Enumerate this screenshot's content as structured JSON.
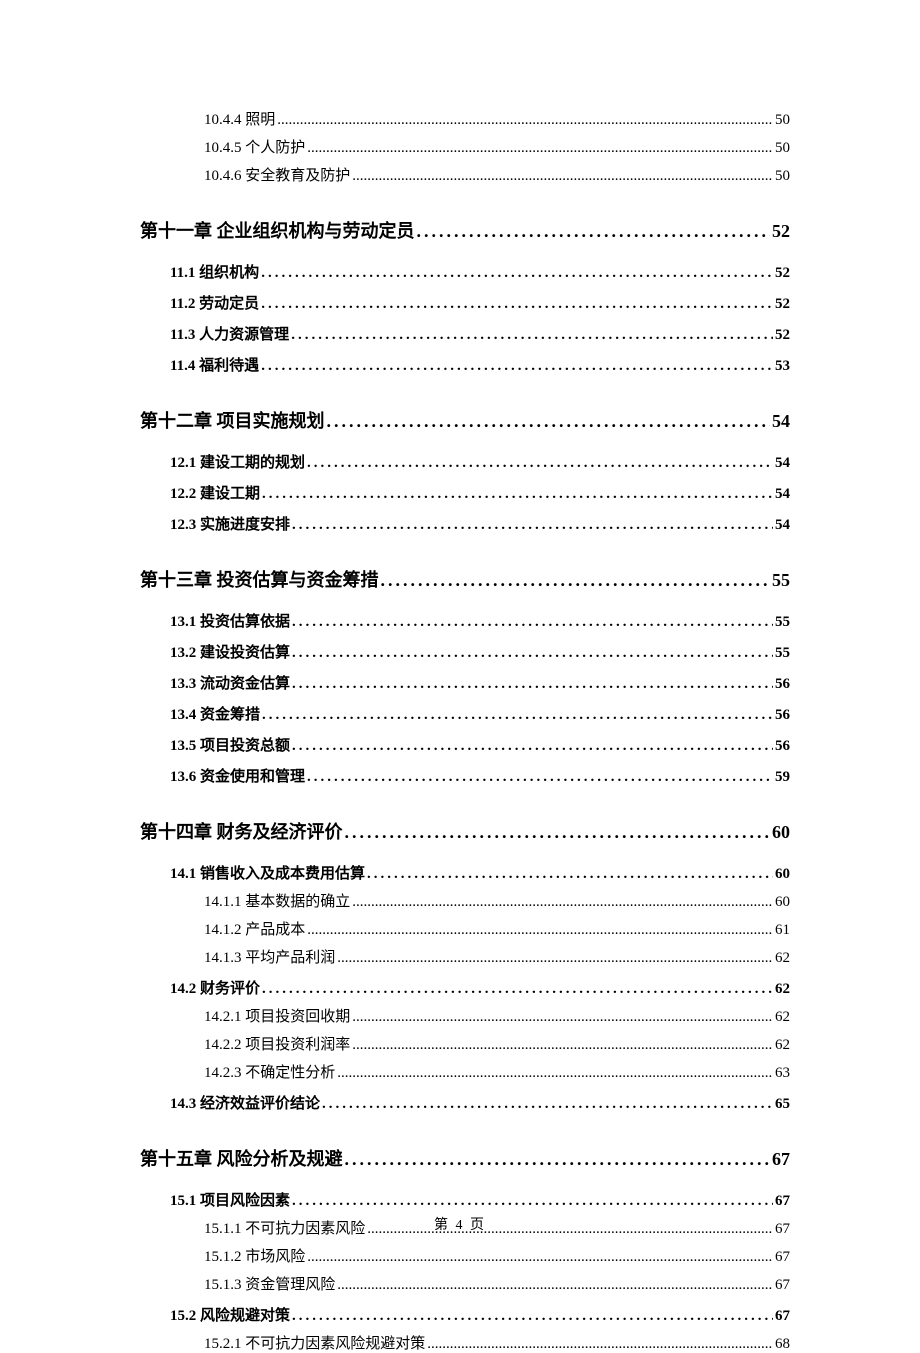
{
  "footer": "第 4 页",
  "leader_dot_l12": ".",
  "leader_dot_l3": ".",
  "entries": [
    {
      "level": 3,
      "label": "10.4.4 照明",
      "page": "50",
      "first": true
    },
    {
      "level": 3,
      "label": "10.4.5 个人防护",
      "page": "50"
    },
    {
      "level": 3,
      "label": "10.4.6 安全教育及防护",
      "page": "50",
      "groupEnd": true
    },
    {
      "level": 1,
      "label": "第十一章  企业组织机构与劳动定员",
      "page": "52"
    },
    {
      "level": 2,
      "label": "11.1 组织机构",
      "page": "52"
    },
    {
      "level": 2,
      "label": "11.2 劳动定员",
      "page": "52"
    },
    {
      "level": 2,
      "label": "11.3 人力资源管理",
      "page": "52"
    },
    {
      "level": 2,
      "label": "11.4 福利待遇",
      "page": "53"
    },
    {
      "level": 1,
      "label": "第十二章  项目实施规划",
      "page": "54"
    },
    {
      "level": 2,
      "label": "12.1 建设工期的规划",
      "page": "54"
    },
    {
      "level": 2,
      "label": "12.2  建设工期",
      "page": "54"
    },
    {
      "level": 2,
      "label": "12.3 实施进度安排",
      "page": "54"
    },
    {
      "level": 1,
      "label": "第十三章  投资估算与资金筹措",
      "page": "55"
    },
    {
      "level": 2,
      "label": "13.1 投资估算依据",
      "page": "55"
    },
    {
      "level": 2,
      "label": "13.2 建设投资估算",
      "page": "55"
    },
    {
      "level": 2,
      "label": "13.3 流动资金估算",
      "page": "56"
    },
    {
      "level": 2,
      "label": "13.4 资金筹措",
      "page": "56"
    },
    {
      "level": 2,
      "label": "13.5 项目投资总额",
      "page": "56"
    },
    {
      "level": 2,
      "label": "13.6 资金使用和管理",
      "page": "59"
    },
    {
      "level": 1,
      "label": "第十四章  财务及经济评价",
      "page": "60"
    },
    {
      "level": 2,
      "label": "14.1 销售收入及成本费用估算",
      "page": "60"
    },
    {
      "level": 3,
      "label": "14.1.1 基本数据的确立",
      "page": "60"
    },
    {
      "level": 3,
      "label": "14.1.2 产品成本",
      "page": "61"
    },
    {
      "level": 3,
      "label": "14.1.3 平均产品利润",
      "page": "62"
    },
    {
      "level": 2,
      "label": "14.2 财务评价",
      "page": "62"
    },
    {
      "level": 3,
      "label": "14.2.1 项目投资回收期",
      "page": "62"
    },
    {
      "level": 3,
      "label": "14.2.2 项目投资利润率",
      "page": "62"
    },
    {
      "level": 3,
      "label": "14.2.3 不确定性分析",
      "page": "63"
    },
    {
      "level": 2,
      "label": "14.3 经济效益评价结论",
      "page": "65"
    },
    {
      "level": 1,
      "label": "第十五章  风险分析及规避",
      "page": "67"
    },
    {
      "level": 2,
      "label": "15.1 项目风险因素",
      "page": "67"
    },
    {
      "level": 3,
      "label": "15.1.1 不可抗力因素风险",
      "page": "67"
    },
    {
      "level": 3,
      "label": "15.1.2 市场风险",
      "page": "67"
    },
    {
      "level": 3,
      "label": "15.1.3 资金管理风险",
      "page": "67"
    },
    {
      "level": 2,
      "label": "15.2 风险规避对策",
      "page": "67"
    },
    {
      "level": 3,
      "label": "15.2.1 不可抗力因素风险规避对策",
      "page": "68"
    }
  ]
}
